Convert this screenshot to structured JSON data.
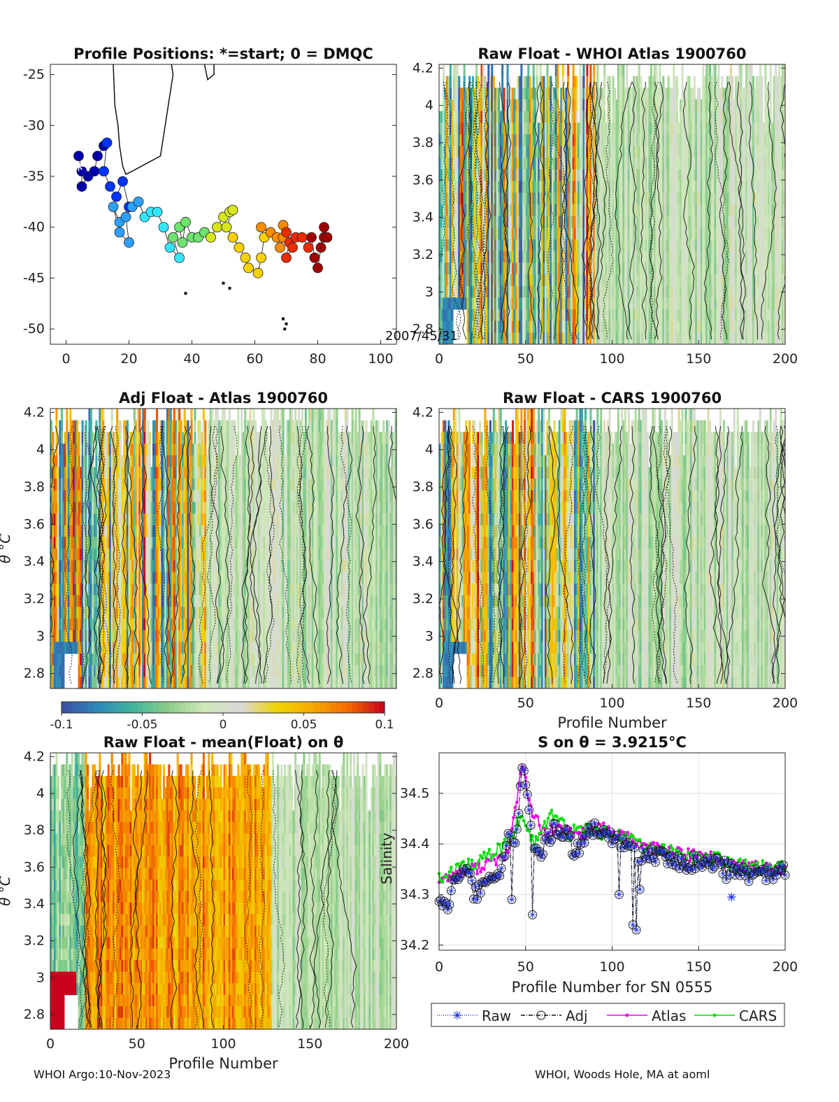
{
  "figure": {
    "footer_left": "WHOI Argo:10-Nov-2023",
    "footer_right": "WHOI, Woods Hole, MA at aoml",
    "overlap_label": "2007/45/31",
    "theta_label": "θ °C"
  },
  "chart_data": [
    {
      "id": "positions",
      "type": "scatter",
      "title": "Profile Positions: *=start; 0 = DMQC",
      "xlim": [
        -5,
        105
      ],
      "ylim": [
        -51.5,
        -24
      ],
      "xticks": [
        "0",
        "20",
        "40",
        "60",
        "80",
        "100"
      ],
      "yticks": [
        "-25",
        "-30",
        "-35",
        "-40",
        "-45",
        "-50"
      ],
      "track": [
        [
          4,
          -33
        ],
        [
          5,
          -34.5
        ],
        [
          5,
          -36
        ],
        [
          7,
          -35
        ],
        [
          9,
          -34.5
        ],
        [
          10,
          -33
        ],
        [
          12,
          -32
        ],
        [
          13,
          -31.7
        ],
        [
          12,
          -34.5
        ],
        [
          14,
          -36
        ],
        [
          16,
          -37
        ],
        [
          18,
          -35.5
        ],
        [
          20,
          -38
        ],
        [
          17,
          -39.5
        ],
        [
          15,
          -38
        ],
        [
          17,
          -40.5
        ],
        [
          20,
          -41.5
        ],
        [
          19,
          -39
        ],
        [
          21,
          -38
        ],
        [
          23,
          -37.5
        ],
        [
          25,
          -39
        ],
        [
          27,
          -38.5
        ],
        [
          29,
          -38.5
        ],
        [
          31,
          -40
        ],
        [
          33,
          -42
        ],
        [
          36,
          -43
        ],
        [
          34,
          -41
        ],
        [
          36,
          -40
        ],
        [
          37,
          -41.5
        ],
        [
          38,
          -39.5
        ],
        [
          40,
          -41
        ],
        [
          42,
          -41
        ],
        [
          44,
          -40.5
        ],
        [
          46,
          -41
        ],
        [
          48,
          -40
        ],
        [
          50,
          -39
        ],
        [
          52,
          -38.5
        ],
        [
          53,
          -38.3
        ],
        [
          51,
          -40
        ],
        [
          53,
          -41
        ],
        [
          55,
          -42
        ],
        [
          57,
          -43
        ],
        [
          58,
          -44
        ],
        [
          61,
          -44.5
        ],
        [
          62,
          -43
        ],
        [
          63,
          -41
        ],
        [
          62,
          -40
        ],
        [
          65,
          -40.5
        ],
        [
          67,
          -41
        ],
        [
          68,
          -42
        ],
        [
          69,
          -41
        ],
        [
          69,
          -39.8
        ],
        [
          70,
          -40.5
        ],
        [
          71,
          -41.5
        ],
        [
          70,
          -43
        ],
        [
          72,
          -42
        ],
        [
          73,
          -41
        ],
        [
          75,
          -41
        ],
        [
          77,
          -42
        ],
        [
          78,
          -41
        ],
        [
          79,
          -43
        ],
        [
          80,
          -44
        ],
        [
          81,
          -42
        ],
        [
          82,
          -41
        ],
        [
          82,
          -40
        ],
        [
          83,
          -41
        ]
      ],
      "start": [
        4,
        -34
      ],
      "coast": [
        [
          [
            15,
            -24
          ],
          [
            15.5,
            -28
          ],
          [
            16.5,
            -30
          ],
          [
            17,
            -32
          ],
          [
            18,
            -34
          ],
          [
            19,
            -34.8
          ],
          [
            21,
            -34.5
          ],
          [
            24,
            -34
          ],
          [
            27,
            -33.5
          ],
          [
            30,
            -33
          ],
          [
            31,
            -31
          ],
          [
            32,
            -29
          ],
          [
            33,
            -27
          ],
          [
            34,
            -25
          ],
          [
            33.5,
            -24
          ]
        ],
        [
          [
            44,
            -24
          ],
          [
            45,
            -25.5
          ],
          [
            47,
            -25
          ],
          [
            47,
            -24
          ]
        ]
      ],
      "islands": [
        [
          50,
          -45.5
        ],
        [
          52,
          -46
        ],
        [
          38,
          -46.5
        ],
        [
          69,
          -49
        ],
        [
          70,
          -49.5
        ],
        [
          69.5,
          -50
        ]
      ]
    },
    {
      "id": "raw_whoi",
      "type": "heatmap",
      "title": "Raw Float - WHOI Atlas  1900760",
      "xlim": [
        0,
        200
      ],
      "ylim": [
        2.72,
        4.22
      ],
      "xticks": [
        "0",
        "50",
        "100",
        "150",
        "200"
      ],
      "yticks": [
        "2.8",
        "3",
        "3.2",
        "3.4",
        "3.6",
        "3.8",
        "4",
        "4.2"
      ],
      "clim": [
        -0.1,
        0.1
      ],
      "pattern": "anomaly",
      "seed": 11
    },
    {
      "id": "adj_atlas",
      "type": "heatmap",
      "title": "Adj Float - Atlas  1900760",
      "xlim": [
        0,
        200
      ],
      "ylim": [
        2.72,
        4.22
      ],
      "xticks": [],
      "yticks": [
        "2.8",
        "3",
        "3.2",
        "3.4",
        "3.6",
        "3.8",
        "4",
        "4.2"
      ],
      "ylabel": "θ °C",
      "clim": [
        -0.1,
        0.1
      ],
      "pattern": "anomaly",
      "seed": 23
    },
    {
      "id": "raw_cars",
      "type": "heatmap",
      "title": "Raw Float - CARS  1900760",
      "xlim": [
        0,
        200
      ],
      "ylim": [
        2.72,
        4.22
      ],
      "xticks": [
        "0",
        "50",
        "100",
        "150",
        "200"
      ],
      "yticks": [
        "2.8",
        "3",
        "3.2",
        "3.4",
        "3.6",
        "3.8",
        "4",
        "4.2"
      ],
      "xlabel": "Profile Number",
      "clim": [
        -0.1,
        0.1
      ],
      "pattern": "anomaly",
      "seed": 37
    },
    {
      "id": "colorbar",
      "type": "colorbar",
      "clim": [
        -0.1,
        0.1
      ],
      "ticks": [
        "-0.1",
        "-0.05",
        "0",
        "0.05",
        "0.1"
      ],
      "colors": [
        "#3b4fa5",
        "#2f88b8",
        "#3fb59b",
        "#8fce88",
        "#cfe8b8",
        "#d8d8d8",
        "#f1d400",
        "#f6a800",
        "#f26a00",
        "#c8001e"
      ]
    },
    {
      "id": "raw_mean",
      "type": "heatmap",
      "title": "Raw Float - mean(Float) on θ",
      "xlim": [
        0,
        200
      ],
      "ylim": [
        2.72,
        4.22
      ],
      "xticks": [
        "0",
        "50",
        "100",
        "150",
        "200"
      ],
      "yticks": [
        "2.8",
        "3",
        "3.2",
        "3.4",
        "3.6",
        "3.8",
        "4",
        "4.2"
      ],
      "xlabel": "Profile Number",
      "ylabel": "θ °C",
      "clim": [
        -0.1,
        0.1
      ],
      "pattern": "mean",
      "seed": 51
    },
    {
      "id": "salinity",
      "type": "line",
      "title": "S on θ = 3.9215°C",
      "xlabel": "Profile Number for SN 0555",
      "ylabel": "Salinity",
      "xlim": [
        0,
        200
      ],
      "ylim": [
        34.19,
        34.58
      ],
      "xticks": [
        "0",
        "50",
        "100",
        "150",
        "200"
      ],
      "yticks": [
        "34.2",
        "34.3",
        "34.4",
        "34.5"
      ],
      "grid": true,
      "legend": [
        "Raw",
        "Adj",
        "Atlas",
        "CARS"
      ],
      "series_colors": {
        "Raw": "#2233dd",
        "Adj": "#111111",
        "Atlas": "#ee00ee",
        "CARS": "#00dd00"
      },
      "knots": [
        [
          0,
          34.28
        ],
        [
          4,
          34.27
        ],
        [
          8,
          34.32
        ],
        [
          12,
          34.35
        ],
        [
          16,
          34.36
        ],
        [
          20,
          34.3
        ],
        [
          25,
          34.31
        ],
        [
          30,
          34.33
        ],
        [
          35,
          34.34
        ],
        [
          40,
          34.42
        ],
        [
          44,
          34.4
        ],
        [
          46,
          34.46
        ],
        [
          48,
          34.55
        ],
        [
          50,
          34.51
        ],
        [
          53,
          34.44
        ],
        [
          57,
          34.37
        ],
        [
          62,
          34.4
        ],
        [
          66,
          34.43
        ],
        [
          70,
          34.41
        ],
        [
          74,
          34.43
        ],
        [
          78,
          34.38
        ],
        [
          82,
          34.4
        ],
        [
          86,
          34.42
        ],
        [
          92,
          34.43
        ],
        [
          96,
          34.42
        ],
        [
          100,
          34.41
        ],
        [
          105,
          34.4
        ],
        [
          110,
          34.39
        ],
        [
          115,
          34.38
        ],
        [
          120,
          34.38
        ],
        [
          130,
          34.37
        ],
        [
          140,
          34.36
        ],
        [
          150,
          34.365
        ],
        [
          160,
          34.36
        ],
        [
          170,
          34.345
        ],
        [
          180,
          34.34
        ],
        [
          190,
          34.34
        ],
        [
          200,
          34.345
        ]
      ],
      "dips": [
        [
          42,
          34.29
        ],
        [
          54,
          34.26
        ],
        [
          104,
          34.3
        ],
        [
          112,
          34.24
        ],
        [
          114,
          34.23
        ],
        [
          116,
          34.31
        ],
        [
          166,
          34.33
        ]
      ],
      "atlas_knots": [
        [
          0,
          34.33
        ],
        [
          20,
          34.35
        ],
        [
          40,
          34.38
        ],
        [
          48,
          34.56
        ],
        [
          52,
          34.48
        ],
        [
          60,
          34.42
        ],
        [
          70,
          34.43
        ],
        [
          80,
          34.42
        ],
        [
          95,
          34.43
        ],
        [
          110,
          34.41
        ],
        [
          125,
          34.39
        ],
        [
          140,
          34.38
        ],
        [
          155,
          34.375
        ],
        [
          170,
          34.36
        ],
        [
          200,
          34.35
        ]
      ],
      "cars_knots": [
        [
          0,
          34.33
        ],
        [
          20,
          34.36
        ],
        [
          40,
          34.4
        ],
        [
          48,
          34.46
        ],
        [
          55,
          34.4
        ],
        [
          65,
          34.46
        ],
        [
          75,
          34.42
        ],
        [
          85,
          34.43
        ],
        [
          100,
          34.42
        ],
        [
          115,
          34.4
        ],
        [
          130,
          34.385
        ],
        [
          145,
          34.375
        ],
        [
          160,
          34.37
        ],
        [
          175,
          34.355
        ],
        [
          200,
          34.35
        ]
      ],
      "raw_marker": [
        169,
        34.295
      ]
    }
  ]
}
